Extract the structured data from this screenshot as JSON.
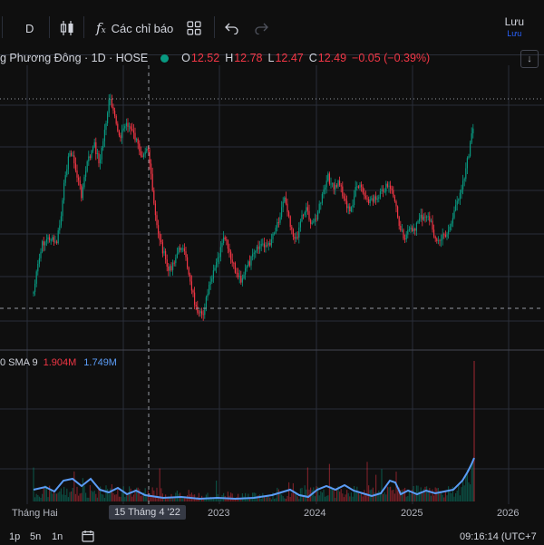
{
  "toolbar": {
    "interval": "D",
    "indicators_label": "Các chỉ báo",
    "save_label": "Lưu",
    "save_sub": "Lưu"
  },
  "symbol": {
    "name": "g Phương Đông · 1D · HOSE",
    "o_label": "O",
    "o": "12.52",
    "h_label": "H",
    "h": "12.78",
    "l_label": "L",
    "l": "12.47",
    "c_label": "C",
    "c": "12.49",
    "change": "−0.05 (−0.39%)"
  },
  "volume_legend": {
    "name": "0 SMA 9",
    "value1": "1.904M",
    "value2": "1.749M"
  },
  "x_axis": {
    "labels": [
      "Tháng Hai",
      "2023",
      "2024",
      "2025",
      "2026"
    ],
    "crosshair_label": "15 Tháng 4 '22"
  },
  "bottom_bar": {
    "ranges": [
      "1p",
      "5n",
      "1n"
    ],
    "clock": "09:16:14 (UTC+7"
  },
  "colors": {
    "up": "#089981",
    "down": "#f23645",
    "sma": "#5b9cf6",
    "background": "#0f0f0f",
    "grid": "#2a2e39"
  }
}
